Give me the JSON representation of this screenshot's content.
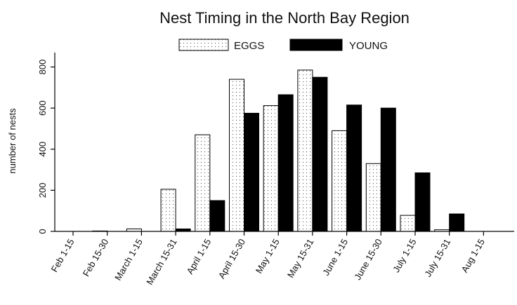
{
  "chart_data": {
    "type": "bar",
    "title": "Nest Timing in the North Bay Region",
    "xlabel": "",
    "ylabel": "number of nests",
    "ylim": [
      0,
      870
    ],
    "yticks": [
      0,
      200,
      400,
      600,
      800
    ],
    "legend_position": "top",
    "categories": [
      "Feb 1-15",
      "Feb 15-30",
      "March 1-15",
      "March 15-31",
      "April 1-15",
      "April 15-30",
      "May 1-15",
      "May 15-31",
      "June 1-15",
      "June 15-30",
      "July 1-15",
      "July 15-31",
      "Aug 1-15"
    ],
    "series": [
      {
        "name": "EGGS",
        "fill": "dotted",
        "color": "#ffffff",
        "values": [
          0,
          2,
          12,
          205,
          470,
          740,
          612,
          785,
          490,
          330,
          78,
          8,
          0
        ]
      },
      {
        "name": "YOUNG",
        "fill": "solid",
        "color": "#000000",
        "values": [
          0,
          0,
          0,
          12,
          150,
          575,
          665,
          750,
          615,
          600,
          285,
          85,
          0
        ]
      }
    ]
  }
}
